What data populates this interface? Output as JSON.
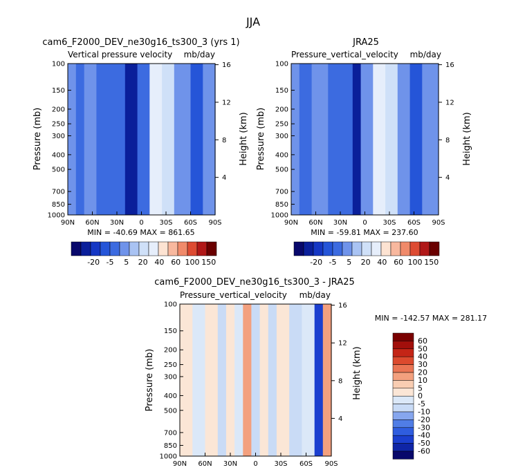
{
  "figure": {
    "title": "JJA"
  },
  "chart_data": [
    {
      "type": "heatmap",
      "title": "cam6_F2000_DEV_ne30g16_ts300_3 (yrs 1)",
      "subtitle_left": "Vertical pressure velocity",
      "subtitle_right": "mb/day",
      "ylabel": "Pressure (mb)",
      "ylabel_right": "Height (km)",
      "x_ticks": [
        "90N",
        "60N",
        "30N",
        "0",
        "30S",
        "60S",
        "90S"
      ],
      "y_ticks": [
        "100",
        "150",
        "200",
        "250",
        "300",
        "400",
        "500",
        "700",
        "850",
        "1000"
      ],
      "y_right_ticks": [
        "16",
        "12",
        "8",
        "4"
      ],
      "stats": "MIN = -40.69   MAX = 861.65",
      "colorbar_labels": [
        "-20",
        "-5",
        "5",
        "20",
        "40",
        "60",
        "100",
        "150"
      ],
      "bands": [
        {
          "lat": "90N-80N",
          "value": -8
        },
        {
          "lat": "80N-70N",
          "value": -12
        },
        {
          "lat": "70N-55N",
          "value": -6
        },
        {
          "lat": "55N-40N",
          "value": -10
        },
        {
          "lat": "40N-20N",
          "value": -9
        },
        {
          "lat": "20N-5N",
          "value": -30
        },
        {
          "lat": "5N-10S",
          "value": -10
        },
        {
          "lat": "10S-25S",
          "value": 3
        },
        {
          "lat": "25S-40S",
          "value": 1
        },
        {
          "lat": "40S-60S",
          "value": -8
        },
        {
          "lat": "60S-75S",
          "value": -15
        },
        {
          "lat": "75S-90S",
          "value": -5
        }
      ]
    },
    {
      "type": "heatmap",
      "title": "JRA25",
      "subtitle_left": "Pressure_vertical_velocity",
      "subtitle_right": "mb/day",
      "ylabel": "Pressure (mb)",
      "ylabel_right": "Height (km)",
      "x_ticks": [
        "90N",
        "60N",
        "30N",
        "0",
        "30S",
        "60S",
        "90S"
      ],
      "y_ticks": [
        "100",
        "150",
        "200",
        "250",
        "300",
        "400",
        "500",
        "700",
        "850",
        "1000"
      ],
      "y_right_ticks": [
        "16",
        "12",
        "8",
        "4"
      ],
      "stats": "MIN = -59.81   MAX = 237.60",
      "colorbar_labels": [
        "-20",
        "-5",
        "5",
        "20",
        "40",
        "60",
        "100",
        "150"
      ],
      "bands": [
        {
          "lat": "90N-80N",
          "value": -8
        },
        {
          "lat": "80N-65N",
          "value": -10
        },
        {
          "lat": "65N-45N",
          "value": -6
        },
        {
          "lat": "45N-25N",
          "value": -10
        },
        {
          "lat": "25N-15N",
          "value": -12
        },
        {
          "lat": "15N-5N",
          "value": -35
        },
        {
          "lat": "5N-10S",
          "value": -8
        },
        {
          "lat": "10S-25S",
          "value": 4
        },
        {
          "lat": "25S-40S",
          "value": 2
        },
        {
          "lat": "40S-55S",
          "value": -6
        },
        {
          "lat": "55S-70S",
          "value": -15
        },
        {
          "lat": "70S-90S",
          "value": -5
        }
      ]
    },
    {
      "type": "heatmap",
      "title": "cam6_F2000_DEV_ne30g16_ts300_3 - JRA25",
      "subtitle_left": "Pressure_vertical_velocity",
      "subtitle_right": "mb/day",
      "ylabel": "Pressure (mb)",
      "ylabel_right": "Height (km)",
      "x_ticks": [
        "90N",
        "60N",
        "30N",
        "0",
        "30S",
        "60S",
        "90S"
      ],
      "y_ticks": [
        "100",
        "150",
        "200",
        "250",
        "300",
        "400",
        "500",
        "700",
        "850",
        "1000"
      ],
      "y_right_ticks": [
        "16",
        "12",
        "8",
        "4"
      ],
      "stats": "MIN = -142.57   MAX = 281.17",
      "colorbar_labels": [
        "60",
        "50",
        "40",
        "30",
        "20",
        "10",
        "5",
        "0",
        "-5",
        "-10",
        "-20",
        "-30",
        "-40",
        "-50",
        "-60"
      ],
      "bands": [
        {
          "lat": "90N-75N",
          "value": 2
        },
        {
          "lat": "75N-60N",
          "value": -1
        },
        {
          "lat": "60N-45N",
          "value": 2
        },
        {
          "lat": "45N-35N",
          "value": -2
        },
        {
          "lat": "35N-25N",
          "value": 3
        },
        {
          "lat": "25N-15N",
          "value": -1
        },
        {
          "lat": "15N-5N",
          "value": 12
        },
        {
          "lat": "5N-5S",
          "value": -2
        },
        {
          "lat": "5S-15S",
          "value": 3
        },
        {
          "lat": "15S-25S",
          "value": -4
        },
        {
          "lat": "25S-40S",
          "value": 2
        },
        {
          "lat": "40S-55S",
          "value": -3
        },
        {
          "lat": "55S-70S",
          "value": -1
        },
        {
          "lat": "70S-80S",
          "value": -40
        },
        {
          "lat": "80S-90S",
          "value": 15
        }
      ]
    }
  ]
}
